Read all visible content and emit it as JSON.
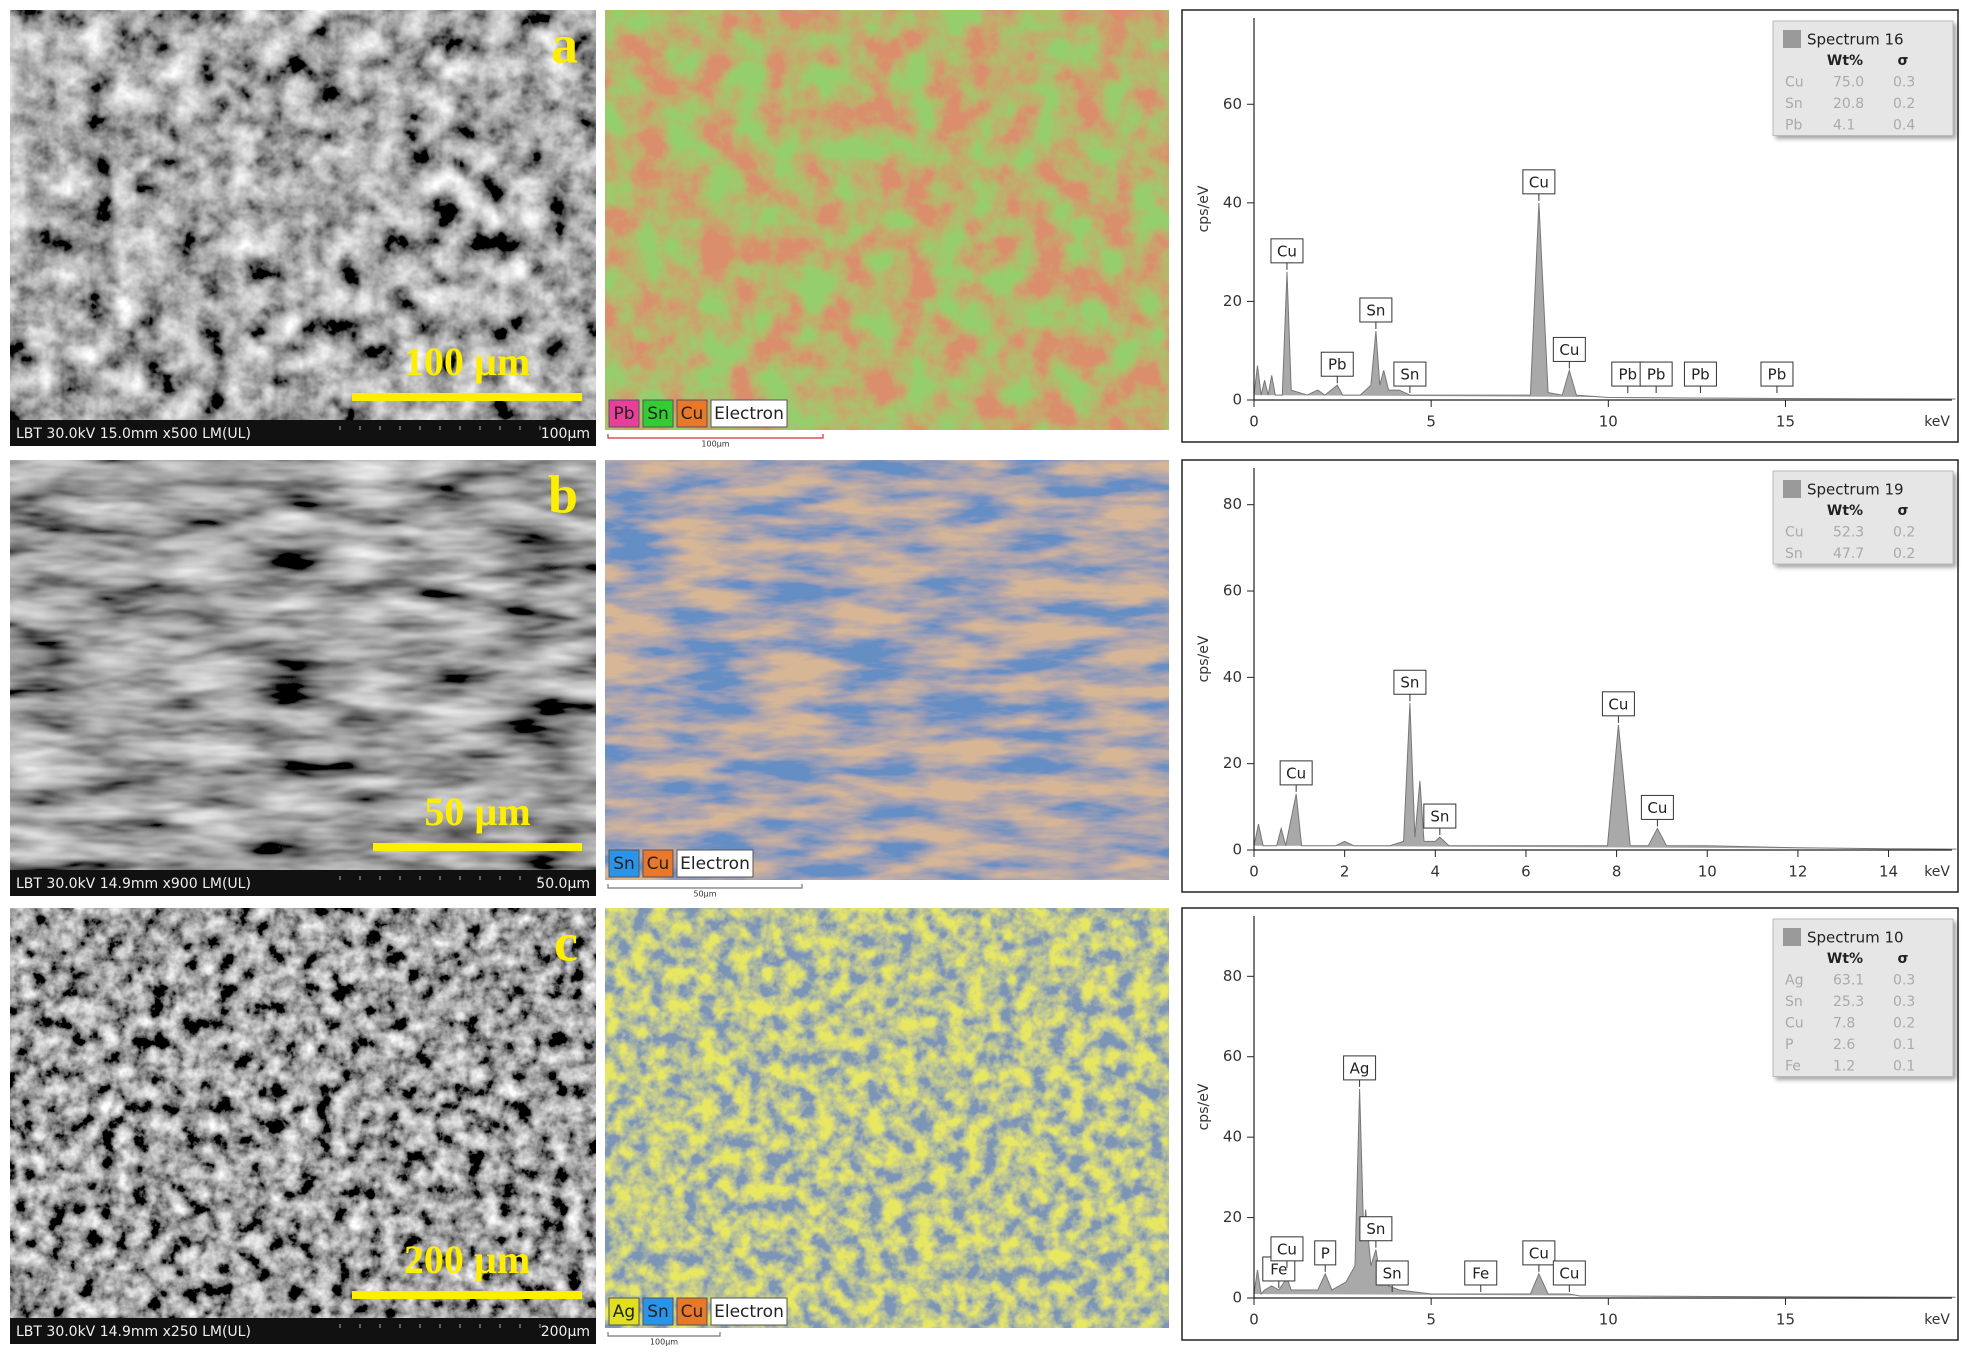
{
  "panels": [
    {
      "label": "a",
      "sem_info": "LBT 30.0kV 15.0mm x500 LM(UL)",
      "sem_scale": "100µm",
      "scale_bar": "100 µm",
      "map_legend": [
        {
          "text": "Pb",
          "color": "#e8409a"
        },
        {
          "text": "Sn",
          "color": "#33cc33"
        },
        {
          "text": "Cu",
          "color": "#e8782a"
        },
        {
          "text": "Electron",
          "color": "#ffffff"
        }
      ],
      "map_scale": "100µm"
    },
    {
      "label": "b",
      "sem_info": "LBT 30.0kV 14.9mm x900 LM(UL)",
      "sem_scale": "50.0µm",
      "scale_bar": "50 µm",
      "map_legend": [
        {
          "text": "Sn",
          "color": "#2a95e8"
        },
        {
          "text": "Cu",
          "color": "#e8782a"
        },
        {
          "text": "Electron",
          "color": "#ffffff"
        }
      ],
      "map_scale": "50µm"
    },
    {
      "label": "c",
      "sem_info": "LBT 30.0kV 14.9mm x250 LM(UL)",
      "sem_scale": "200µm",
      "scale_bar": "200 µm",
      "map_legend": [
        {
          "text": "Ag",
          "color": "#e0e020"
        },
        {
          "text": "Sn",
          "color": "#2a95e8"
        },
        {
          "text": "Cu",
          "color": "#e8782a"
        },
        {
          "text": "Electron",
          "color": "#ffffff"
        }
      ],
      "map_scale": "100µm"
    }
  ],
  "chart_data": [
    {
      "type": "line",
      "ylabel": "cps/eV",
      "xlabel": "keV",
      "x": [
        0,
        0.1,
        0.2,
        0.3,
        0.4,
        0.5,
        0.6,
        0.8,
        0.93,
        1.05,
        1.5,
        1.8,
        2.0,
        2.35,
        2.5,
        3.0,
        3.3,
        3.44,
        3.55,
        3.66,
        3.8,
        4.1,
        4.4,
        5,
        7,
        7.8,
        8.04,
        8.3,
        8.7,
        8.9,
        9.1,
        10,
        12,
        15,
        19.8
      ],
      "series": [
        {
          "name": "Spectrum 16",
          "color": "#9a9a9a",
          "values": [
            1,
            7,
            1,
            4,
            1,
            5,
            1,
            1,
            26,
            2,
            1,
            2,
            1,
            3,
            1,
            1,
            3,
            14,
            3,
            6,
            2,
            2,
            1,
            1,
            1,
            1,
            40,
            1.5,
            1,
            6,
            1,
            0.5,
            0.4,
            0.3,
            0.2
          ]
        }
      ],
      "xlim": [
        0,
        19.7
      ],
      "ylim": [
        0,
        77.5
      ],
      "xticks": [
        0,
        5,
        10,
        15
      ],
      "yticks": [
        0,
        20,
        40,
        60
      ],
      "annotations": [
        {
          "text": "Cu",
          "x": 0.93,
          "y": 26
        },
        {
          "text": "Pb",
          "x": 2.35,
          "y": 3
        },
        {
          "text": "Sn",
          "x": 3.44,
          "y": 14
        },
        {
          "text": "Sn",
          "x": 4.4,
          "y": 1
        },
        {
          "text": "Cu",
          "x": 8.04,
          "y": 40
        },
        {
          "text": "Cu",
          "x": 8.9,
          "y": 6
        },
        {
          "text": "Pb",
          "x": 10.55,
          "y": 1
        },
        {
          "text": "Pb",
          "x": 11.35,
          "y": 1
        },
        {
          "text": "Pb",
          "x": 12.6,
          "y": 1
        },
        {
          "text": "Pb",
          "x": 14.76,
          "y": 1
        }
      ],
      "legend_table": {
        "columns": [
          "Wt%",
          "σ"
        ],
        "rows": [
          [
            "Cu",
            "75.0",
            "0.3"
          ],
          [
            "Sn",
            "20.8",
            "0.2"
          ],
          [
            "Pb",
            "4.1",
            "0.4"
          ]
        ]
      }
    },
    {
      "type": "line",
      "ylabel": "cps/eV",
      "xlabel": "keV",
      "x": [
        0,
        0.1,
        0.2,
        0.3,
        0.5,
        0.6,
        0.7,
        0.93,
        1.05,
        1.3,
        1.8,
        2.0,
        2.2,
        2.5,
        3.0,
        3.3,
        3.44,
        3.55,
        3.66,
        3.75,
        4.0,
        4.1,
        4.3,
        5,
        7,
        7.8,
        8.04,
        8.3,
        8.7,
        8.9,
        9.1,
        10,
        12,
        14,
        15.5
      ],
      "series": [
        {
          "name": "Spectrum 19",
          "color": "#9a9a9a",
          "values": [
            1,
            6,
            1,
            1,
            1,
            5,
            1,
            13,
            1,
            1,
            1,
            2,
            1,
            1,
            1,
            2,
            34,
            3,
            16,
            2,
            2,
            3,
            1,
            1,
            1,
            1,
            29,
            1,
            1,
            5,
            1,
            1,
            0.5,
            0.3,
            0.2
          ]
        }
      ],
      "xlim": [
        0,
        15.4
      ],
      "ylim": [
        0,
        88.5
      ],
      "xticks": [
        0,
        2,
        4,
        6,
        8,
        10,
        12,
        14
      ],
      "yticks": [
        0,
        20,
        40,
        60,
        80
      ],
      "annotations": [
        {
          "text": "Cu",
          "x": 0.93,
          "y": 13
        },
        {
          "text": "Sn",
          "x": 3.44,
          "y": 34
        },
        {
          "text": "Sn",
          "x": 4.1,
          "y": 3
        },
        {
          "text": "Cu",
          "x": 8.04,
          "y": 29
        },
        {
          "text": "Cu",
          "x": 8.9,
          "y": 5
        }
      ],
      "legend_table": {
        "columns": [
          "Wt%",
          "σ"
        ],
        "rows": [
          [
            "Cu",
            "52.3",
            "0.2"
          ],
          [
            "Sn",
            "47.7",
            "0.2"
          ]
        ]
      }
    },
    {
      "type": "line",
      "ylabel": "cps/eV",
      "xlabel": "keV",
      "x": [
        0,
        0.1,
        0.2,
        0.3,
        0.5,
        0.7,
        0.93,
        1.05,
        1.3,
        1.8,
        2.01,
        2.2,
        2.6,
        2.85,
        2.98,
        3.1,
        3.15,
        3.3,
        3.44,
        3.6,
        3.66,
        3.8,
        4.1,
        5,
        6.4,
        7.8,
        8.04,
        8.3,
        8.9,
        9.2,
        10,
        12,
        15,
        19.8
      ],
      "series": [
        {
          "name": "Spectrum 10",
          "color": "#9a9a9a",
          "values": [
            1,
            7,
            1,
            2,
            3,
            2,
            5,
            2,
            2,
            2,
            6,
            2,
            4,
            8,
            52,
            15,
            22,
            8,
            12,
            3,
            8,
            3,
            2,
            1,
            1,
            1,
            6,
            1,
            1,
            0.5,
            0.5,
            0.4,
            0.3,
            0.2
          ]
        }
      ],
      "xlim": [
        0,
        19.7
      ],
      "ylim": [
        0,
        95
      ],
      "xticks": [
        0,
        5,
        10,
        15
      ],
      "yticks": [
        0,
        20,
        40,
        60,
        80
      ],
      "annotations": [
        {
          "text": "Fe",
          "x": 0.7,
          "y": 2
        },
        {
          "text": "Cu",
          "x": 0.93,
          "y": 7
        },
        {
          "text": "P",
          "x": 2.01,
          "y": 6
        },
        {
          "text": "Ag",
          "x": 2.98,
          "y": 52
        },
        {
          "text": "Sn",
          "x": 3.44,
          "y": 12
        },
        {
          "text": "Sn",
          "x": 3.9,
          "y": 1
        },
        {
          "text": "Fe",
          "x": 6.4,
          "y": 1
        },
        {
          "text": "Cu",
          "x": 8.04,
          "y": 6
        },
        {
          "text": "Cu",
          "x": 8.9,
          "y": 1
        }
      ],
      "legend_table": {
        "columns": [
          "Wt%",
          "σ"
        ],
        "rows": [
          [
            "Ag",
            "63.1",
            "0.3"
          ],
          [
            "Sn",
            "25.3",
            "0.3"
          ],
          [
            "Cu",
            "7.8",
            "0.2"
          ],
          [
            "P",
            "2.6",
            "0.1"
          ],
          [
            "Fe",
            "1.2",
            "0.1"
          ]
        ]
      }
    }
  ]
}
